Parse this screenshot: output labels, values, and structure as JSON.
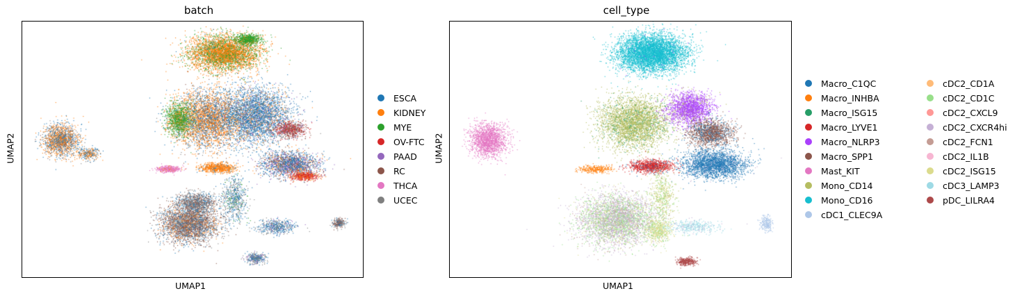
{
  "chart_data": [
    {
      "type": "scatter",
      "title": "batch",
      "xlabel": "UMAP1",
      "ylabel": "UMAP2",
      "grid": false,
      "legend_position": "right",
      "legend_columns": 1,
      "categories": [
        {
          "name": "ESCA",
          "color": "#1f77b4"
        },
        {
          "name": "KIDNEY",
          "color": "#ff7f0e"
        },
        {
          "name": "MYE",
          "color": "#2ca02c"
        },
        {
          "name": "OV-FTC",
          "color": "#d62728"
        },
        {
          "name": "PAAD",
          "color": "#9467bd"
        },
        {
          "name": "RC",
          "color": "#8c564b"
        },
        {
          "name": "THCA",
          "color": "#e377c2"
        },
        {
          "name": "UCEC",
          "color": "#7f7f7f"
        }
      ]
    },
    {
      "type": "scatter",
      "title": "cell_type",
      "xlabel": "UMAP1",
      "ylabel": "UMAP2",
      "grid": false,
      "legend_position": "right",
      "legend_columns": 2,
      "categories": [
        {
          "name": "Macro_C1QC",
          "color": "#1f77b4"
        },
        {
          "name": "Macro_INHBA",
          "color": "#ff7f0e"
        },
        {
          "name": "Macro_ISG15",
          "color": "#279e68"
        },
        {
          "name": "Macro_LYVE1",
          "color": "#d62728"
        },
        {
          "name": "Macro_NLRP3",
          "color": "#aa40fc"
        },
        {
          "name": "Macro_SPP1",
          "color": "#8c564b"
        },
        {
          "name": "Mast_KIT",
          "color": "#e377c2"
        },
        {
          "name": "Mono_CD14",
          "color": "#b5bd61"
        },
        {
          "name": "Mono_CD16",
          "color": "#17becf"
        },
        {
          "name": "cDC1_CLEC9A",
          "color": "#aec7e8"
        },
        {
          "name": "cDC2_CD1A",
          "color": "#ffbb78"
        },
        {
          "name": "cDC2_CD1C",
          "color": "#98df8a"
        },
        {
          "name": "cDC2_CXCL9",
          "color": "#ff9896"
        },
        {
          "name": "cDC2_CXCR4hi",
          "color": "#c5b0d5"
        },
        {
          "name": "cDC2_FCN1",
          "color": "#c49c94"
        },
        {
          "name": "cDC2_IL1B",
          "color": "#f7b6d2"
        },
        {
          "name": "cDC2_ISG15",
          "color": "#dbdb8d"
        },
        {
          "name": "cDC3_LAMP3",
          "color": "#9edae5"
        },
        {
          "name": "pDC_LILRA4",
          "color": "#ad494a"
        }
      ]
    }
  ]
}
